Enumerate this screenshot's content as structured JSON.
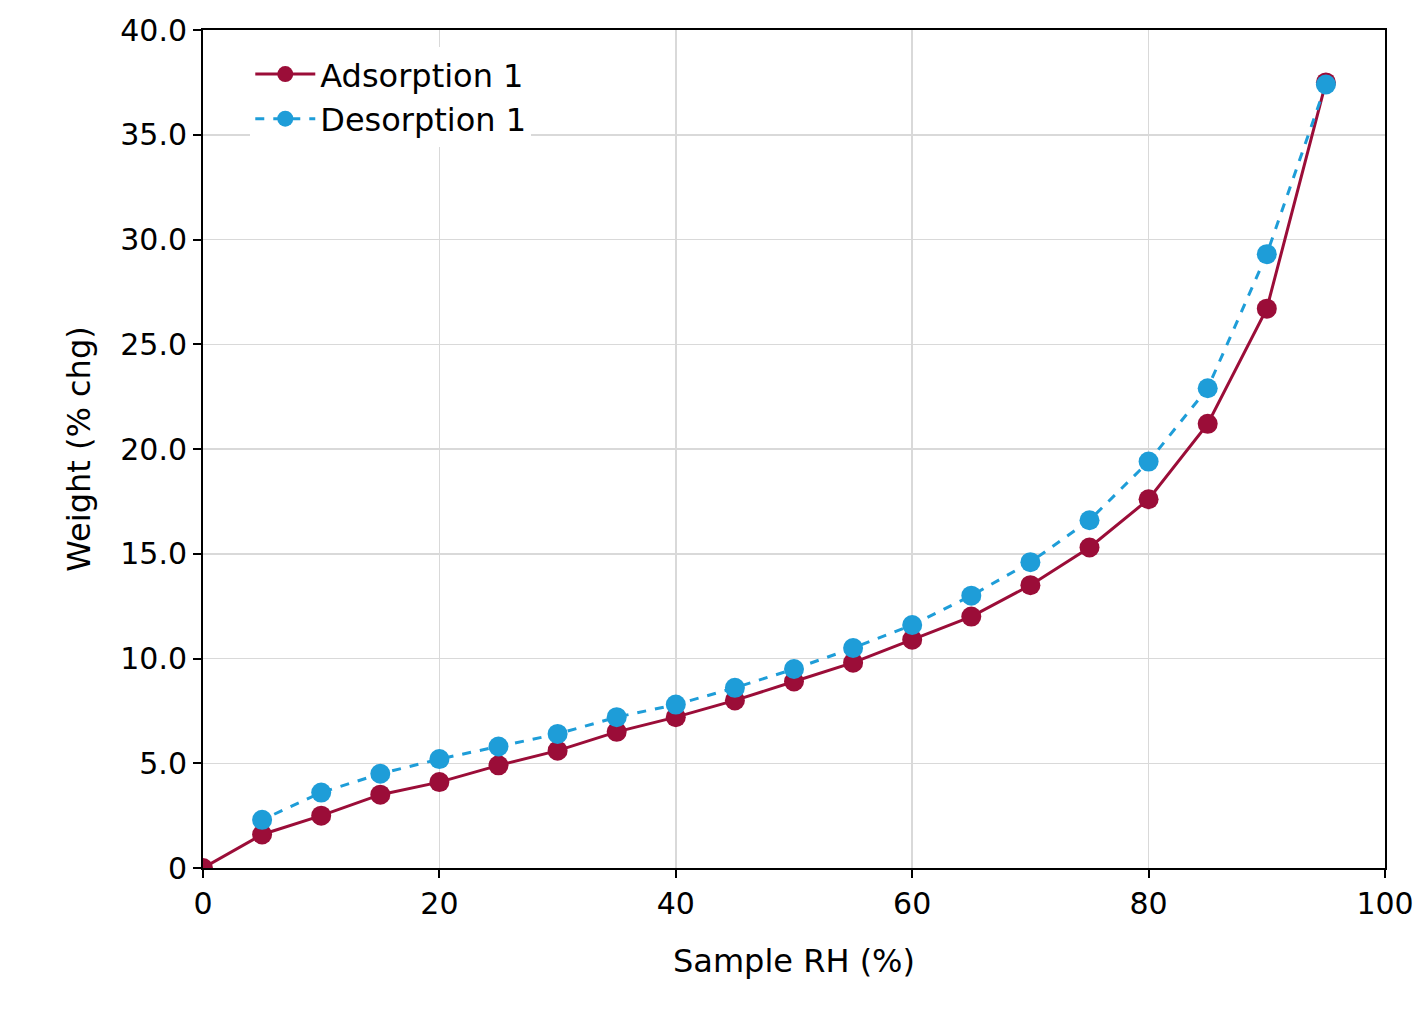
{
  "chart_data": {
    "type": "line",
    "x_label": "Sample RH (%)",
    "y_label": "Weight (% chg)",
    "xlim": [
      0,
      100
    ],
    "xticks": [
      0,
      20,
      40,
      60,
      80,
      100
    ],
    "ylim": [
      0,
      40
    ],
    "yticks": [
      0,
      {
        "value": 5,
        "label": "5.0"
      },
      {
        "value": 10,
        "label": "10.0"
      },
      {
        "value": 15,
        "label": "15.0"
      },
      {
        "value": 20,
        "label": "20.0"
      },
      {
        "value": 25,
        "label": "25.0"
      },
      {
        "value": 30,
        "label": "30.0"
      },
      {
        "value": 35,
        "label": "35.0"
      },
      {
        "value": 40,
        "label": "40.0"
      }
    ],
    "grid": true,
    "legend": "upper left",
    "series": [
      {
        "name": "Adsorption 1",
        "color": "#9b0d38",
        "marker": "circle",
        "line_style": "solid",
        "x": [
          0,
          5,
          10,
          15,
          20,
          25,
          30,
          35,
          40,
          45,
          50,
          55,
          60,
          65,
          70,
          75,
          80,
          85,
          90,
          95
        ],
        "values": [
          0,
          1.6,
          2.5,
          3.5,
          4.1,
          4.9,
          5.6,
          6.5,
          7.2,
          8.0,
          8.9,
          9.8,
          10.9,
          12.0,
          13.5,
          15.3,
          17.6,
          21.2,
          26.7,
          37.5
        ]
      },
      {
        "name": "Desorption 1",
        "color": "#1e9dd8",
        "marker": "circle",
        "line_style": "dash",
        "x": [
          95,
          90,
          85,
          80,
          75,
          70,
          65,
          60,
          55,
          50,
          45,
          40,
          35,
          30,
          25,
          20,
          15,
          10,
          5
        ],
        "values": [
          37.4,
          29.3,
          22.9,
          19.4,
          16.6,
          14.6,
          13.0,
          11.6,
          10.5,
          9.5,
          8.6,
          7.8,
          7.2,
          6.4,
          5.8,
          5.2,
          4.5,
          3.6,
          2.3
        ]
      }
    ]
  }
}
